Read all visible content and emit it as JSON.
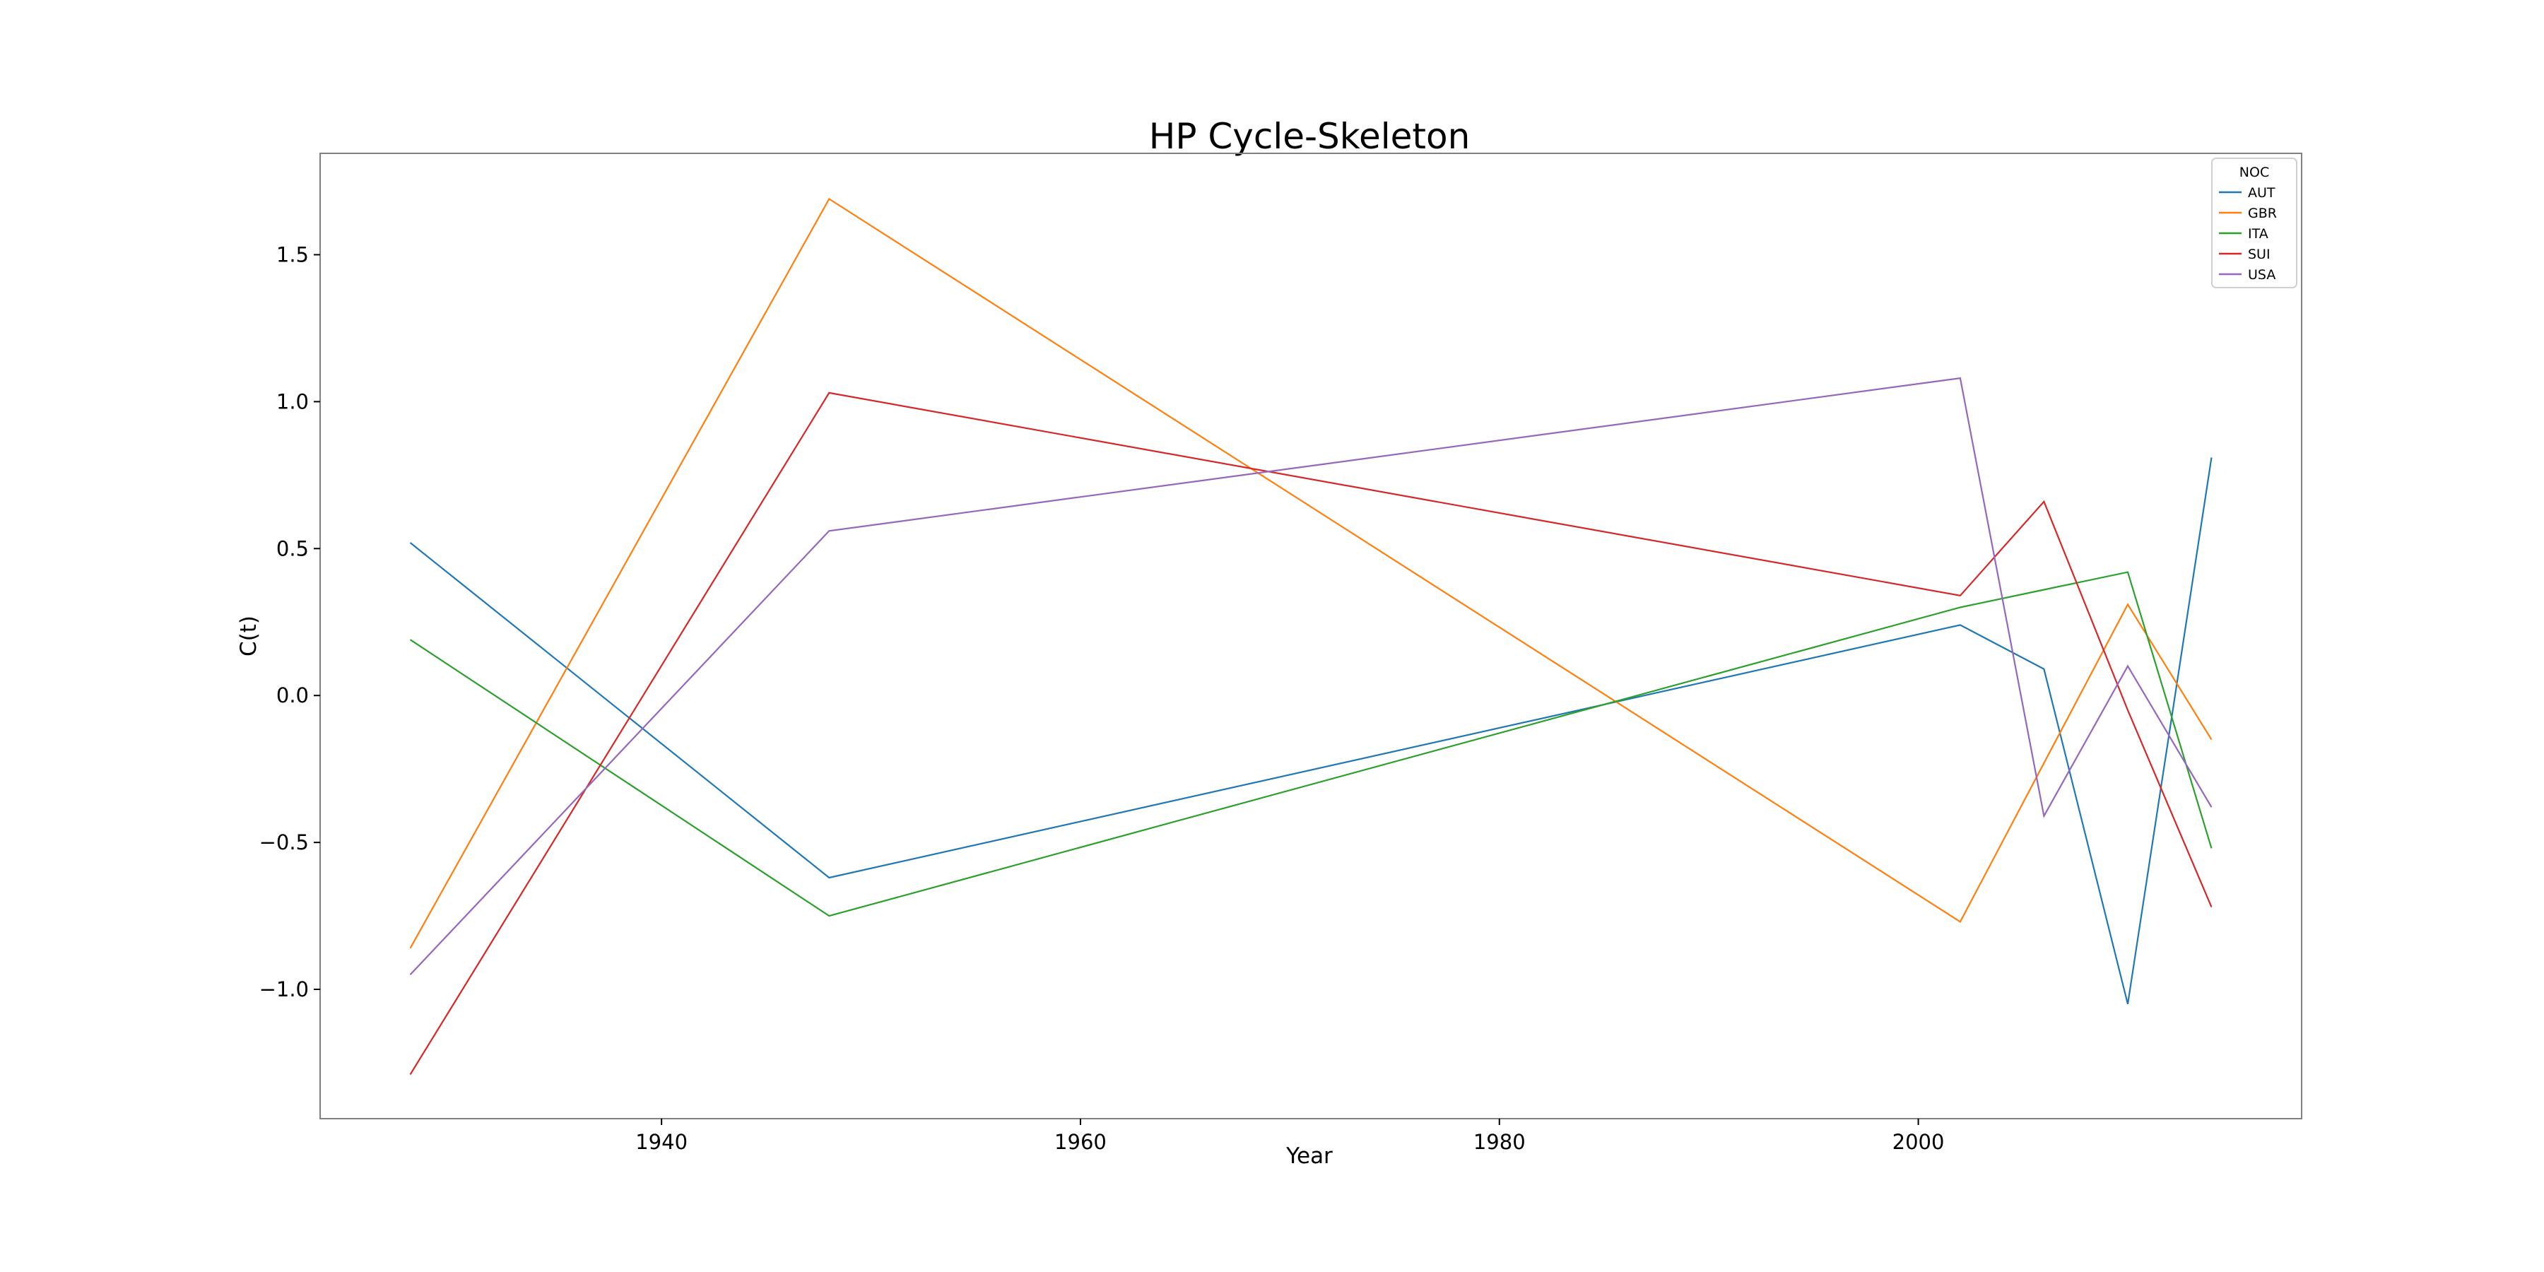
{
  "chart_data": {
    "type": "line",
    "title": "HP Cycle-Skeleton",
    "xlabel": "Year",
    "ylabel": "C(t)",
    "xlim": [
      1923.7,
      2018.3
    ],
    "ylim": [
      -1.44,
      1.845
    ],
    "x_ticks": [
      1940,
      1960,
      1980,
      2000
    ],
    "y_ticks": [
      -1.0,
      -0.5,
      0.0,
      0.5,
      1.0,
      1.5
    ],
    "y_tick_labels": [
      "−1.0",
      "−0.5",
      "0.0",
      "0.5",
      "1.0",
      "1.5"
    ],
    "grid": false,
    "legend": {
      "title": "NOC",
      "placement": "top-right"
    },
    "x": [
      1928,
      1948,
      2002,
      2006,
      2010,
      2014
    ],
    "series": [
      {
        "name": "AUT",
        "color": "#1f77b4",
        "values": [
          0.52,
          -0.62,
          0.24,
          0.09,
          -1.05,
          0.81
        ]
      },
      {
        "name": "GBR",
        "color": "#ff7f0e",
        "values": [
          -0.86,
          1.69,
          -0.77,
          -0.23,
          0.31,
          -0.15
        ]
      },
      {
        "name": "ITA",
        "color": "#2ca02c",
        "values": [
          0.19,
          -0.75,
          0.3,
          0.36,
          0.42,
          -0.52
        ]
      },
      {
        "name": "SUI",
        "color": "#d62728",
        "values": [
          -1.29,
          1.03,
          0.34,
          0.66,
          -0.05,
          -0.72
        ]
      },
      {
        "name": "USA",
        "color": "#9467bd",
        "values": [
          -0.95,
          0.56,
          1.08,
          -0.41,
          0.1,
          -0.38
        ]
      }
    ]
  }
}
